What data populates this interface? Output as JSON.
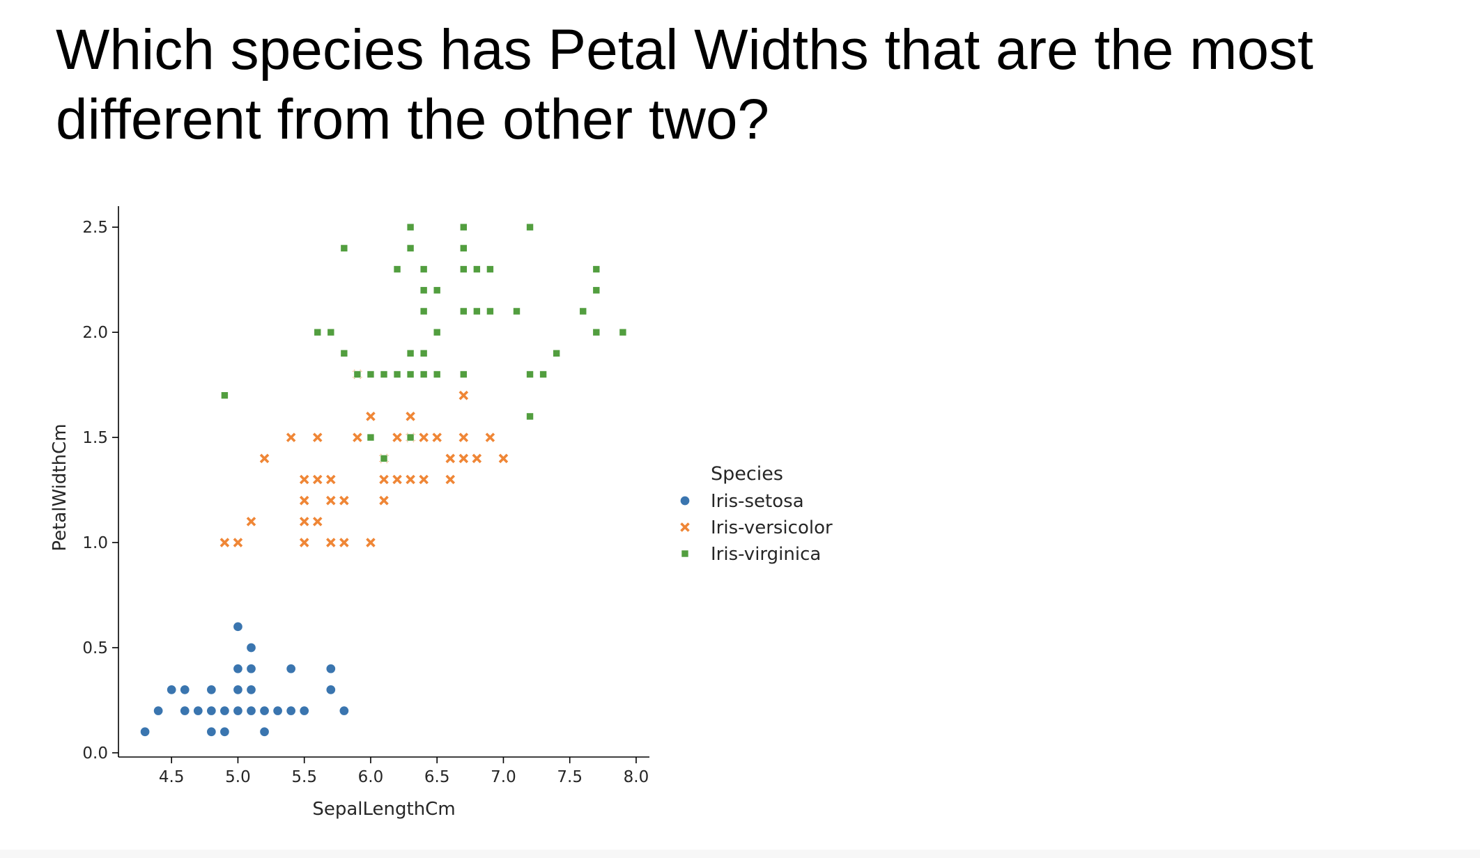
{
  "slide": {
    "title": "Which species has Petal Widths that are the most different from the other two?"
  },
  "chart_data": {
    "type": "scatter",
    "title": "",
    "xlabel": "SepalLengthCm",
    "ylabel": "PetalWidthCm",
    "xlim": [
      4.1,
      8.1
    ],
    "ylim": [
      -0.02,
      2.6
    ],
    "x_ticks": [
      4.5,
      5.0,
      5.5,
      6.0,
      6.5,
      7.0,
      7.5,
      8.0
    ],
    "y_ticks": [
      0.0,
      0.5,
      1.0,
      1.5,
      2.0,
      2.5
    ],
    "grid": false,
    "legend": {
      "title": "Species",
      "placement": "right-outside"
    },
    "series": [
      {
        "name": "Iris-setosa",
        "marker": "circle",
        "color": "#3a75af",
        "points": [
          [
            4.3,
            0.1
          ],
          [
            4.4,
            0.2
          ],
          [
            4.5,
            0.3
          ],
          [
            4.6,
            0.3
          ],
          [
            4.6,
            0.2
          ],
          [
            4.7,
            0.2
          ],
          [
            4.8,
            0.3
          ],
          [
            4.8,
            0.2
          ],
          [
            4.8,
            0.1
          ],
          [
            4.9,
            0.2
          ],
          [
            4.9,
            0.1
          ],
          [
            5.0,
            0.6
          ],
          [
            5.0,
            0.4
          ],
          [
            5.0,
            0.3
          ],
          [
            5.0,
            0.2
          ],
          [
            5.1,
            0.5
          ],
          [
            5.1,
            0.4
          ],
          [
            5.1,
            0.3
          ],
          [
            5.1,
            0.2
          ],
          [
            5.2,
            0.2
          ],
          [
            5.2,
            0.1
          ],
          [
            5.3,
            0.2
          ],
          [
            5.4,
            0.4
          ],
          [
            5.4,
            0.2
          ],
          [
            5.5,
            0.2
          ],
          [
            5.7,
            0.4
          ],
          [
            5.7,
            0.3
          ],
          [
            5.8,
            0.2
          ]
        ]
      },
      {
        "name": "Iris-versicolor",
        "marker": "x",
        "color": "#ef8636",
        "points": [
          [
            4.9,
            1.0
          ],
          [
            5.0,
            1.0
          ],
          [
            5.1,
            1.1
          ],
          [
            5.2,
            1.4
          ],
          [
            5.4,
            1.5
          ],
          [
            5.5,
            1.3
          ],
          [
            5.5,
            1.2
          ],
          [
            5.5,
            1.1
          ],
          [
            5.5,
            1.0
          ],
          [
            5.6,
            1.5
          ],
          [
            5.6,
            1.3
          ],
          [
            5.6,
            1.1
          ],
          [
            5.7,
            1.3
          ],
          [
            5.7,
            1.2
          ],
          [
            5.7,
            1.0
          ],
          [
            5.8,
            1.2
          ],
          [
            5.8,
            1.0
          ],
          [
            5.9,
            1.8
          ],
          [
            5.9,
            1.5
          ],
          [
            6.0,
            1.6
          ],
          [
            6.0,
            1.0
          ],
          [
            6.1,
            1.4
          ],
          [
            6.1,
            1.3
          ],
          [
            6.1,
            1.2
          ],
          [
            6.2,
            1.5
          ],
          [
            6.2,
            1.3
          ],
          [
            6.3,
            1.6
          ],
          [
            6.3,
            1.5
          ],
          [
            6.3,
            1.3
          ],
          [
            6.4,
            1.5
          ],
          [
            6.4,
            1.3
          ],
          [
            6.5,
            1.5
          ],
          [
            6.6,
            1.4
          ],
          [
            6.6,
            1.3
          ],
          [
            6.7,
            1.7
          ],
          [
            6.7,
            1.5
          ],
          [
            6.7,
            1.4
          ],
          [
            6.8,
            1.4
          ],
          [
            6.9,
            1.5
          ],
          [
            7.0,
            1.4
          ]
        ]
      },
      {
        "name": "Iris-virginica",
        "marker": "square",
        "color": "#529e3f",
        "points": [
          [
            4.9,
            1.7
          ],
          [
            5.6,
            2.0
          ],
          [
            5.7,
            2.0
          ],
          [
            5.8,
            2.4
          ],
          [
            5.8,
            1.9
          ],
          [
            5.9,
            1.8
          ],
          [
            6.0,
            1.8
          ],
          [
            6.0,
            1.5
          ],
          [
            6.1,
            1.8
          ],
          [
            6.1,
            1.4
          ],
          [
            6.2,
            2.3
          ],
          [
            6.2,
            1.8
          ],
          [
            6.3,
            2.5
          ],
          [
            6.3,
            2.4
          ],
          [
            6.3,
            1.9
          ],
          [
            6.3,
            1.8
          ],
          [
            6.3,
            1.5
          ],
          [
            6.4,
            2.3
          ],
          [
            6.4,
            2.2
          ],
          [
            6.4,
            2.1
          ],
          [
            6.4,
            1.9
          ],
          [
            6.4,
            1.8
          ],
          [
            6.5,
            2.2
          ],
          [
            6.5,
            2.0
          ],
          [
            6.5,
            1.8
          ],
          [
            6.7,
            2.5
          ],
          [
            6.7,
            2.4
          ],
          [
            6.7,
            2.3
          ],
          [
            6.7,
            2.1
          ],
          [
            6.7,
            1.8
          ],
          [
            6.8,
            2.3
          ],
          [
            6.8,
            2.1
          ],
          [
            6.9,
            2.3
          ],
          [
            6.9,
            2.1
          ],
          [
            7.1,
            2.1
          ],
          [
            7.2,
            2.5
          ],
          [
            7.2,
            1.8
          ],
          [
            7.2,
            1.6
          ],
          [
            7.3,
            1.8
          ],
          [
            7.4,
            1.9
          ],
          [
            7.6,
            2.1
          ],
          [
            7.7,
            2.3
          ],
          [
            7.7,
            2.2
          ],
          [
            7.7,
            2.0
          ],
          [
            7.9,
            2.0
          ]
        ]
      }
    ]
  }
}
